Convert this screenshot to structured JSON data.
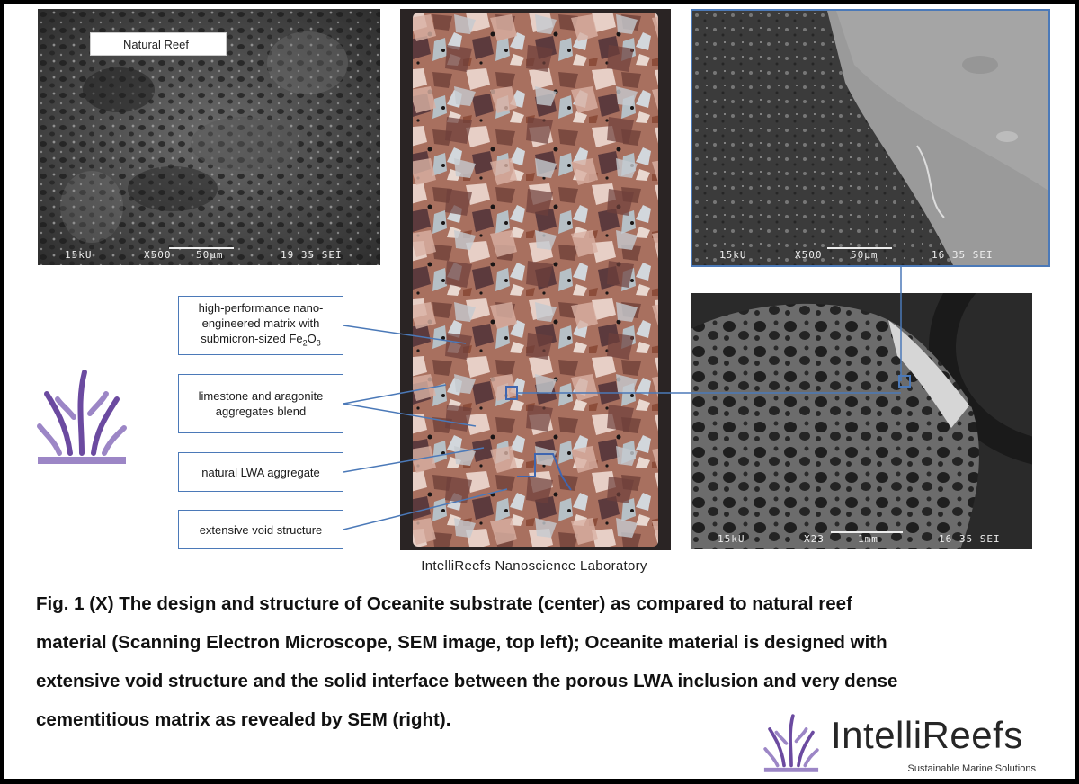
{
  "panels": {
    "natural_reef": {
      "badge": "Natural Reef",
      "scale": {
        "kv": "15kU",
        "mag": "X500",
        "bar": "50µm",
        "id": "19 35 SEI"
      }
    },
    "interface_sem": {
      "scale": {
        "kv": "15kU",
        "mag": "X500",
        "bar": "50µm",
        "id": "16 35 SEI"
      }
    },
    "lwa_sem": {
      "scale": {
        "kv": "15kU",
        "mag": "X23",
        "bar": "1mm",
        "id": "16 35 SEI"
      }
    }
  },
  "labels": {
    "matrix": {
      "line1": "high-performance nano-",
      "line2": "engineered matrix with",
      "line3_prefix": "submicron-sized Fe",
      "sub1": "2",
      "mid": "O",
      "sub2": "3"
    },
    "aggregates": {
      "line1": "limestone and aragonite",
      "line2": "aggregates blend"
    },
    "lwa": "natural LWA aggregate",
    "voids": "extensive void structure"
  },
  "credit": "IntelliReefs Nanoscience Laboratory",
  "caption": {
    "line1": "Fig. 1 (X) The design and structure of Oceanite substrate (center) as compared to natural reef",
    "line2": "material (Scanning Electron Microscope, SEM image, top left); Oceanite material is designed with",
    "line3": "extensive void structure and the solid interface between the porous LWA inclusion and very dense",
    "line4": "cementitious matrix as revealed by SEM (right)."
  },
  "brand": {
    "name": "IntelliReefs",
    "tagline": "Sustainable Marine Solutions"
  },
  "colors": {
    "accent_blue": "#4b79b8",
    "brand_purple": "#6b4aa0",
    "brand_purple_light": "#9c86c6"
  }
}
